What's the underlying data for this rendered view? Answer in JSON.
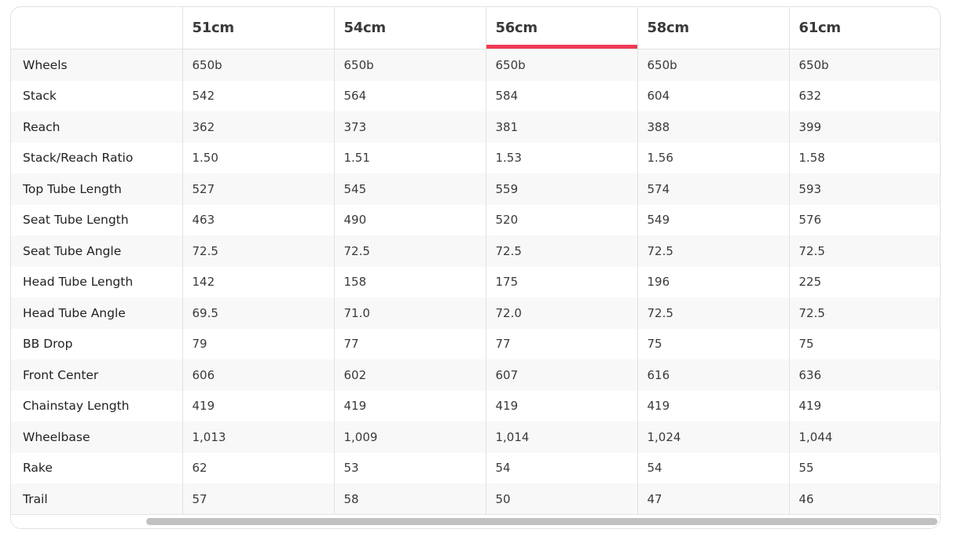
{
  "accent": "#ef3b55",
  "highlighted_column": 2,
  "columns": [
    "51cm",
    "54cm",
    "56cm",
    "58cm",
    "61cm"
  ],
  "rows": [
    {
      "label": "Wheels",
      "values": [
        "650b",
        "650b",
        "650b",
        "650b",
        "650b"
      ]
    },
    {
      "label": "Stack",
      "values": [
        "542",
        "564",
        "584",
        "604",
        "632"
      ]
    },
    {
      "label": "Reach",
      "values": [
        "362",
        "373",
        "381",
        "388",
        "399"
      ]
    },
    {
      "label": "Stack/Reach Ratio",
      "values": [
        "1.50",
        "1.51",
        "1.53",
        "1.56",
        "1.58"
      ]
    },
    {
      "label": "Top Tube Length",
      "values": [
        "527",
        "545",
        "559",
        "574",
        "593"
      ]
    },
    {
      "label": "Seat Tube Length",
      "values": [
        "463",
        "490",
        "520",
        "549",
        "576"
      ]
    },
    {
      "label": "Seat Tube Angle",
      "values": [
        "72.5",
        "72.5",
        "72.5",
        "72.5",
        "72.5"
      ]
    },
    {
      "label": "Head Tube Length",
      "values": [
        "142",
        "158",
        "175",
        "196",
        "225"
      ]
    },
    {
      "label": "Head Tube Angle",
      "values": [
        "69.5",
        "71.0",
        "72.0",
        "72.5",
        "72.5"
      ]
    },
    {
      "label": "BB Drop",
      "values": [
        "79",
        "77",
        "77",
        "75",
        "75"
      ]
    },
    {
      "label": "Front Center",
      "values": [
        "606",
        "602",
        "607",
        "616",
        "636"
      ]
    },
    {
      "label": "Chainstay Length",
      "values": [
        "419",
        "419",
        "419",
        "419",
        "419"
      ]
    },
    {
      "label": "Wheelbase",
      "values": [
        "1,013",
        "1,009",
        "1,014",
        "1,024",
        "1,044"
      ]
    },
    {
      "label": "Rake",
      "values": [
        "62",
        "53",
        "54",
        "54",
        "55"
      ]
    },
    {
      "label": "Trail",
      "values": [
        "57",
        "58",
        "50",
        "47",
        "46"
      ]
    }
  ]
}
